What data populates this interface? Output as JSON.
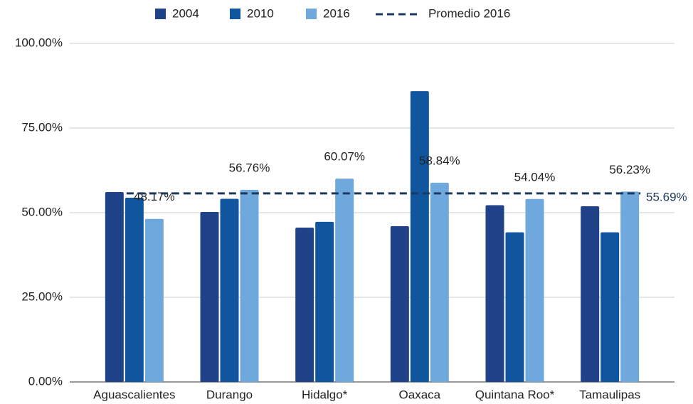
{
  "chart_data": {
    "type": "bar",
    "categories": [
      "Aguascalientes",
      "Durango",
      "Hidalgo*",
      "Oaxaca",
      "Quintana Roo*",
      "Tamaulipas"
    ],
    "series": [
      {
        "name": "2004",
        "color": "#1f4288",
        "values": [
          56.1,
          50.2,
          45.6,
          46.0,
          52.2,
          51.9
        ]
      },
      {
        "name": "2010",
        "color": "#0f569e",
        "values": [
          54.4,
          54.1,
          47.3,
          85.9,
          44.2,
          44.2
        ]
      },
      {
        "name": "2016",
        "color": "#6fa8dc",
        "values": [
          48.17,
          56.76,
          60.07,
          58.84,
          54.04,
          56.23
        ],
        "value_labels": [
          "48.17%",
          "56.76%",
          "60.07%",
          "58.84%",
          "54.04%",
          "56.23%"
        ]
      }
    ],
    "average": {
      "name": "Promedio 2016",
      "value": 55.69,
      "label": "55.69%",
      "color": "#1c3a5e"
    },
    "ylim": [
      0,
      100
    ],
    "yticks": [
      {
        "value": 0,
        "label": "0.00%"
      },
      {
        "value": 25,
        "label": "25.00%"
      },
      {
        "value": 50,
        "label": "50.00%"
      },
      {
        "value": 75,
        "label": "75.00%"
      },
      {
        "value": 100,
        "label": "100.00%"
      }
    ],
    "grid": true
  }
}
